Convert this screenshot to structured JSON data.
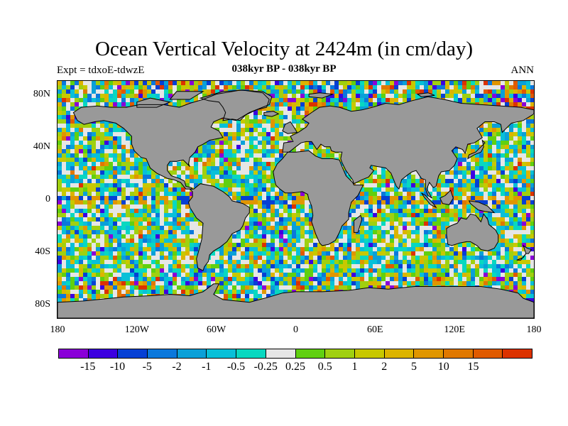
{
  "header": {
    "title": "Ocean Vertical Velocity at 2424m (in cm/day)",
    "left_label": "Expt = tdxoE-tdwzE",
    "center_label": "038kyr BP - 038kyr BP",
    "right_label": "ANN"
  },
  "map": {
    "projection": "cylindrical-equidistant",
    "land_color": "#999999",
    "coastline_color": "#000000",
    "lat_labels": [
      "80N",
      "40N",
      "0",
      "40S",
      "80S"
    ],
    "lat_values": [
      80,
      40,
      0,
      -40,
      -80
    ],
    "lon_labels": [
      "180",
      "120W",
      "60W",
      "0",
      "60E",
      "120E",
      "180"
    ],
    "lon_values": [
      -180,
      -120,
      -60,
      0,
      60,
      120,
      180
    ],
    "lon_range": [
      -180,
      180
    ],
    "lat_range": [
      -90,
      90
    ]
  },
  "colorbar": {
    "colors": [
      "#8a00d8",
      "#3c00e0",
      "#0640d4",
      "#0a78dc",
      "#0aa0d8",
      "#08c0d8",
      "#08d8c0",
      "#e6e6e6",
      "#60d010",
      "#a0d010",
      "#c8c800",
      "#dcb400",
      "#e09600",
      "#e07800",
      "#e05a00",
      "#dc3200"
    ],
    "labels": [
      "-15",
      "-10",
      "-5",
      "-2",
      "-1",
      "-0.5",
      "-0.25",
      "0.25",
      "0.5",
      "1",
      "2",
      "5",
      "10",
      "15"
    ]
  }
}
